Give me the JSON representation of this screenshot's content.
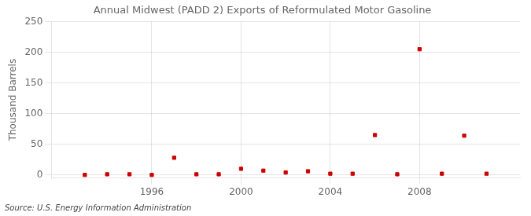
{
  "chart_data": {
    "type": "scatter",
    "title": "Annual Midwest (PADD 2) Exports of Reformulated Motor Gasoline",
    "ylabel": "Thousand Barrels",
    "annotation": "Source: U.S. Energy Information Administration",
    "x": [
      1993,
      1994,
      1995,
      1996,
      1997,
      1998,
      1999,
      2000,
      2001,
      2002,
      2003,
      2004,
      2005,
      2006,
      2007,
      2008,
      2009,
      2010,
      2011
    ],
    "values": [
      0,
      1,
      1,
      0,
      28,
      1,
      1,
      10,
      7,
      4,
      6,
      2,
      2,
      65,
      1,
      205,
      2,
      64,
      2
    ],
    "color": "#cc0000",
    "marker": "square",
    "xlim": [
      1991.5,
      2012.5
    ],
    "xticks": [
      1996,
      2000,
      2004,
      2008
    ],
    "ylim": [
      -5,
      250
    ],
    "yticks": [
      0,
      50,
      100,
      150,
      200,
      250
    ],
    "grid": true
  }
}
